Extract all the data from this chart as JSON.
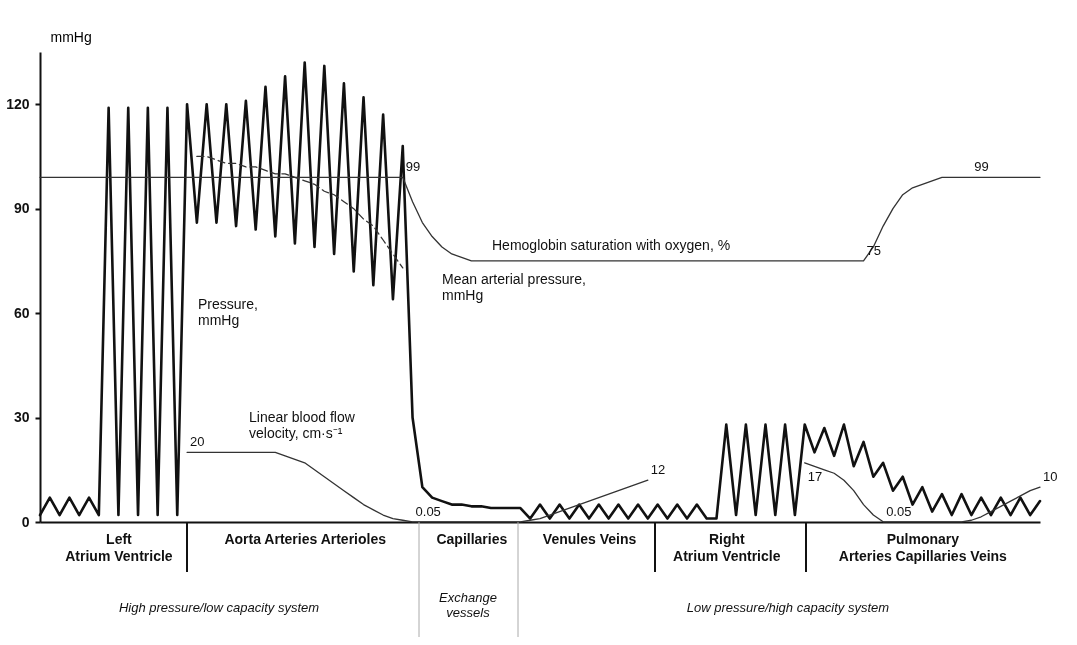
{
  "chart_data": {
    "type": "line",
    "ylabel": "mmHg",
    "ylim": [
      0,
      135
    ],
    "yticks": [
      0,
      30,
      60,
      90,
      120
    ],
    "grid": false,
    "marker": "none",
    "categories": [
      null,
      null,
      null,
      null,
      null,
      null,
      null,
      null,
      "Left\nAtrium Ventricle",
      null,
      null,
      null,
      null,
      null,
      null,
      null,
      null,
      null,
      null,
      null,
      null,
      null,
      null,
      null,
      null,
      null,
      null,
      "Aorta Arteries Arterioles",
      null,
      null,
      null,
      null,
      null,
      null,
      null,
      null,
      null,
      null,
      null,
      null,
      null,
      null,
      null,
      null,
      "Capillaries",
      null,
      null,
      null,
      null,
      null,
      null,
      null,
      null,
      null,
      null,
      null,
      "Venules Veins",
      null,
      null,
      null,
      null,
      null,
      null,
      null,
      null,
      null,
      null,
      null,
      null,
      null,
      "Right\nAtrium Ventricle",
      null,
      null,
      null,
      null,
      null,
      null,
      null,
      null,
      null,
      null,
      null,
      null,
      null,
      null,
      null,
      null,
      null,
      null,
      null,
      "Pulmonary\nArteries Capillaries Veins",
      null,
      null,
      null,
      null,
      null,
      null,
      null,
      null,
      null,
      null,
      null,
      null
    ],
    "series": [
      {
        "color": "#111111",
        "line_style": "solid",
        "values": [
          2,
          7,
          2,
          7,
          2,
          7,
          2,
          119,
          2,
          119,
          2,
          119,
          2,
          119,
          2,
          120,
          86,
          120,
          86,
          120,
          85,
          121,
          84,
          125,
          82,
          128,
          80,
          132,
          79,
          131,
          77,
          126,
          72,
          122,
          68,
          117,
          64,
          108,
          30,
          10,
          7,
          6,
          5,
          5,
          4.5,
          4.5,
          4,
          4,
          4,
          4,
          1,
          5,
          1,
          5,
          1,
          5,
          1,
          5,
          1,
          5,
          1,
          5,
          1,
          5,
          1,
          5,
          1,
          5,
          1,
          1,
          28,
          2,
          28,
          2,
          28,
          2,
          28,
          2,
          28,
          20,
          27,
          19,
          28,
          16,
          23,
          13,
          17,
          9,
          13,
          5,
          10,
          3,
          8,
          2,
          8,
          2,
          7,
          2,
          7,
          2,
          7,
          2,
          6
        ]
      },
      {
        "color": "#333333",
        "line_style": "dashed",
        "values": [
          null,
          null,
          null,
          null,
          null,
          null,
          null,
          null,
          null,
          null,
          null,
          null,
          null,
          null,
          null,
          null,
          105,
          105,
          104,
          103,
          103,
          102,
          102,
          101,
          100,
          100,
          99,
          98,
          97,
          95,
          94,
          92,
          90,
          87,
          85,
          81,
          77,
          73,
          null,
          null,
          null,
          null,
          null,
          null,
          null,
          null,
          null,
          null,
          null,
          null,
          null,
          null,
          null,
          null,
          null,
          null,
          null,
          null,
          null,
          null,
          null,
          null,
          null,
          null,
          null,
          null,
          null,
          null,
          null,
          null,
          null,
          null,
          null,
          null,
          null,
          null,
          null,
          null,
          null,
          null,
          null,
          null,
          null,
          null,
          null,
          null,
          null,
          null,
          null,
          null,
          null,
          null,
          null,
          null,
          null,
          null,
          null,
          null,
          null,
          null,
          null,
          null,
          null
        ]
      },
      {
        "color": "#333333",
        "line_style": "solid",
        "values": [
          99,
          99,
          99,
          99,
          99,
          99,
          99,
          99,
          99,
          99,
          99,
          99,
          99,
          99,
          99,
          99,
          99,
          99,
          99,
          99,
          99,
          99,
          99,
          99,
          99,
          99,
          99,
          99,
          99,
          99,
          99,
          99,
          99,
          99,
          99,
          99,
          99,
          99,
          92,
          86,
          82,
          79,
          77,
          76,
          75,
          75,
          75,
          75,
          75,
          75,
          75,
          75,
          75,
          75,
          75,
          75,
          75,
          75,
          75,
          75,
          75,
          75,
          75,
          75,
          75,
          75,
          75,
          75,
          75,
          75,
          75,
          75,
          75,
          75,
          75,
          75,
          75,
          75,
          75,
          75,
          75,
          75,
          75,
          75,
          75,
          79,
          85,
          90,
          94,
          96,
          97,
          98,
          99,
          99,
          99,
          99,
          99,
          99,
          99,
          99,
          99,
          99,
          99
        ],
        "value_labels": [
          null,
          null,
          null,
          null,
          null,
          null,
          null,
          null,
          null,
          null,
          null,
          null,
          null,
          null,
          null,
          null,
          null,
          null,
          null,
          null,
          null,
          null,
          null,
          null,
          null,
          null,
          null,
          null,
          null,
          null,
          null,
          null,
          null,
          null,
          null,
          null,
          null,
          "99",
          null,
          null,
          null,
          null,
          null,
          null,
          null,
          null,
          null,
          null,
          null,
          null,
          null,
          null,
          null,
          null,
          null,
          null,
          null,
          null,
          null,
          null,
          null,
          null,
          null,
          null,
          null,
          null,
          null,
          null,
          null,
          null,
          null,
          null,
          null,
          null,
          null,
          null,
          null,
          null,
          null,
          null,
          null,
          null,
          null,
          null,
          "75",
          null,
          null,
          null,
          null,
          null,
          null,
          null,
          null,
          null,
          null,
          "99",
          null,
          null,
          null,
          null,
          null,
          null,
          null
        ]
      },
      {
        "color": "#333333",
        "line_style": "solid",
        "values": [
          null,
          null,
          null,
          null,
          null,
          null,
          null,
          null,
          null,
          null,
          null,
          null,
          null,
          null,
          null,
          20,
          20,
          20,
          20,
          20,
          20,
          20,
          20,
          20,
          20,
          19,
          18,
          17,
          15,
          13,
          11,
          9,
          7,
          5,
          3.5,
          2,
          1,
          0.5,
          0.05,
          0.05,
          0.05,
          0.05,
          0.05,
          0.05,
          0.05,
          0.05,
          0.05,
          0.05,
          0.05,
          0.05,
          0.5,
          1,
          2,
          3,
          4,
          5,
          6,
          7,
          8,
          9,
          10,
          11,
          12,
          null,
          null,
          null,
          null,
          null,
          null,
          null,
          null,
          null,
          null,
          null,
          null,
          null,
          null,
          null,
          17,
          16,
          15,
          14,
          12,
          9,
          5,
          2,
          0.05,
          0.05,
          0.05,
          0.05,
          0.05,
          0.05,
          0.05,
          0.05,
          0.05,
          0.5,
          1.5,
          3,
          4.5,
          6,
          7.5,
          9,
          10
        ],
        "value_labels": [
          null,
          null,
          null,
          null,
          null,
          null,
          null,
          null,
          null,
          null,
          null,
          null,
          null,
          null,
          null,
          "20",
          null,
          null,
          null,
          null,
          null,
          null,
          null,
          null,
          null,
          null,
          null,
          null,
          null,
          null,
          null,
          null,
          null,
          null,
          null,
          null,
          null,
          null,
          "0.05",
          null,
          null,
          null,
          null,
          null,
          null,
          null,
          null,
          null,
          null,
          null,
          null,
          null,
          null,
          null,
          null,
          null,
          null,
          null,
          null,
          null,
          null,
          null,
          "12",
          null,
          null,
          null,
          null,
          null,
          null,
          null,
          null,
          null,
          null,
          null,
          null,
          null,
          null,
          null,
          "17",
          null,
          null,
          null,
          null,
          null,
          null,
          null,
          "0.05",
          null,
          null,
          null,
          null,
          null,
          null,
          null,
          null,
          null,
          null,
          null,
          null,
          null,
          null,
          null,
          "10"
        ]
      }
    ],
    "annotations": [
      "Pressure,\nmmHg",
      "Mean arterial pressure,\nmmHg",
      "Hemoglobin saturation with oxygen, %",
      "Linear blood flow\nvelocity, cm·s⁻¹",
      "High pressure/low capacity system",
      "Exchange\nvessels",
      "Low pressure/high capacity system"
    ]
  }
}
